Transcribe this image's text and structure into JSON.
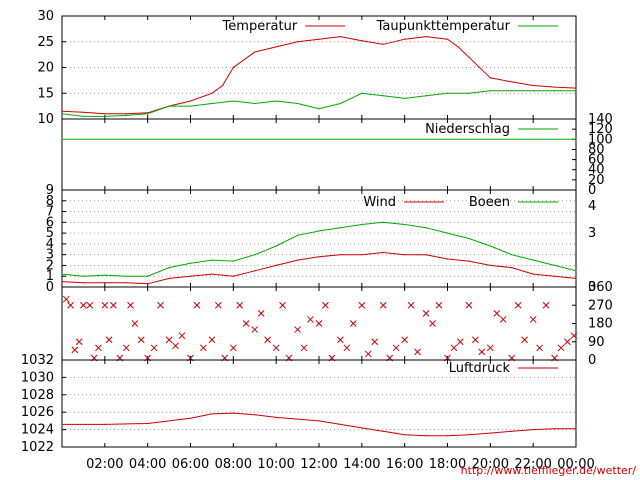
{
  "colors": {
    "red": "#cc0000",
    "green": "#00aa00",
    "grid": "#999999",
    "axis": "#000000"
  },
  "x_axis": {
    "range": [
      "00:00",
      "24:00"
    ],
    "ticks": [
      "02:00",
      "04:00",
      "06:00",
      "08:00",
      "10:00",
      "12:00",
      "14:00",
      "16:00",
      "18:00",
      "20:00",
      "22:00",
      "00:00"
    ],
    "tick_hours": [
      2,
      4,
      6,
      8,
      10,
      12,
      14,
      16,
      18,
      20,
      22,
      24
    ]
  },
  "footer": {
    "url": "http://www.tiefflieger.de/wetter/"
  },
  "chart_data": [
    {
      "type": "line",
      "grid": true,
      "ylim": [
        10,
        30
      ],
      "yticks": [
        "10",
        "15",
        "20",
        "25",
        "30"
      ],
      "ytick_values": [
        10,
        15,
        20,
        25,
        30
      ],
      "legend_position": "top-right",
      "x_unit": "hours",
      "series": [
        {
          "name": "Temperatur",
          "color": "#cc0000",
          "x": [
            0,
            1,
            2,
            3,
            4,
            5,
            6,
            7,
            7.5,
            8,
            9,
            10,
            11,
            12,
            13,
            14,
            15,
            16,
            17,
            18,
            18.5,
            19,
            20,
            21,
            22,
            23,
            24
          ],
          "y": [
            11.5,
            11.3,
            11.0,
            11.0,
            11.2,
            12.5,
            13.5,
            15.0,
            16.5,
            20.0,
            23.0,
            24.0,
            25.0,
            25.5,
            26.0,
            25.2,
            24.5,
            25.5,
            26.0,
            25.5,
            24.0,
            22.0,
            18.0,
            17.2,
            16.5,
            16.2,
            16.0
          ]
        },
        {
          "name": "Taupunkttemperatur",
          "color": "#00aa00",
          "x": [
            0,
            1,
            2,
            3,
            4,
            5,
            6,
            7,
            8,
            9,
            10,
            11,
            12,
            13,
            14,
            15,
            16,
            17,
            18,
            19,
            20,
            21,
            22,
            23,
            24
          ],
          "y": [
            11.0,
            10.5,
            10.5,
            10.7,
            11.0,
            12.5,
            12.5,
            13.0,
            13.5,
            13.0,
            13.5,
            13.0,
            12.0,
            13.0,
            15.0,
            14.5,
            14.0,
            14.5,
            15.0,
            15.0,
            15.5,
            15.5,
            15.5,
            15.5,
            15.5
          ]
        }
      ]
    },
    {
      "type": "line",
      "grid": false,
      "ylim": [
        0,
        140
      ],
      "yticks": [
        "0",
        "20",
        "40",
        "60",
        "80",
        "100",
        "120",
        "140"
      ],
      "ytick_values": [
        0,
        20,
        40,
        60,
        80,
        100,
        120,
        140
      ],
      "legend_position": "top-right",
      "x_unit": "hours",
      "series": [
        {
          "name": "Niederschlag",
          "color": "#00aa00",
          "x": [
            0,
            24
          ],
          "y": [
            100,
            100
          ]
        }
      ]
    },
    {
      "type": "line",
      "grid": true,
      "ylim": [
        0,
        9
      ],
      "yticks": [
        "0",
        "1",
        "2",
        "3",
        "4",
        "5",
        "6",
        "7",
        "8",
        "9"
      ],
      "ytick_values": [
        0,
        1,
        2,
        3,
        4,
        5,
        6,
        7,
        8,
        9
      ],
      "right_ticks": [
        "0",
        "3",
        "4"
      ],
      "right_tick_values": [
        0,
        5,
        7.5
      ],
      "legend_position": "top-right",
      "x_unit": "hours",
      "series": [
        {
          "name": "Wind",
          "color": "#cc0000",
          "x": [
            0,
            1,
            2,
            3,
            4,
            5,
            6,
            7,
            8,
            9,
            10,
            11,
            12,
            13,
            14,
            15,
            16,
            17,
            18,
            19,
            20,
            21,
            22,
            23,
            24
          ],
          "y": [
            0.5,
            0.4,
            0.4,
            0.4,
            0.3,
            0.8,
            1.0,
            1.2,
            1.0,
            1.5,
            2.0,
            2.5,
            2.8,
            3.0,
            3.0,
            3.2,
            3.0,
            3.0,
            2.6,
            2.4,
            2.0,
            1.8,
            1.2,
            1.0,
            0.8
          ]
        },
        {
          "name": "Boeen",
          "color": "#00aa00",
          "x": [
            0,
            1,
            2,
            3,
            4,
            5,
            6,
            7,
            8,
            9,
            10,
            11,
            12,
            13,
            14,
            15,
            16,
            17,
            18,
            19,
            20,
            21,
            22,
            23,
            24
          ],
          "y": [
            1.2,
            1.0,
            1.1,
            1.0,
            1.0,
            1.8,
            2.2,
            2.5,
            2.4,
            3.0,
            3.8,
            4.8,
            5.2,
            5.5,
            5.8,
            6.0,
            5.8,
            5.5,
            5.0,
            4.5,
            3.8,
            3.0,
            2.5,
            2.0,
            1.5
          ]
        }
      ]
    },
    {
      "type": "scatter",
      "grid": false,
      "ylim": [
        0,
        360
      ],
      "yticks": [
        "0",
        "90",
        "180",
        "270",
        "360"
      ],
      "ytick_values": [
        0,
        90,
        180,
        270,
        360
      ],
      "x_unit": "hours",
      "series": [
        {
          "name": "",
          "color": "#cc0000",
          "marker": "x",
          "x": [
            0.2,
            0.4,
            0.6,
            0.8,
            1.0,
            1.3,
            1.5,
            1.7,
            2.0,
            2.2,
            2.4,
            2.7,
            3.0,
            3.2,
            3.4,
            3.7,
            4.0,
            4.3,
            4.6,
            5.0,
            5.3,
            5.6,
            6.0,
            6.3,
            6.6,
            7.0,
            7.3,
            7.6,
            8.0,
            8.3,
            8.6,
            9.0,
            9.3,
            9.6,
            10.0,
            10.3,
            10.6,
            11.0,
            11.3,
            11.6,
            12.0,
            12.3,
            12.6,
            13.0,
            13.3,
            13.6,
            14.0,
            14.3,
            14.6,
            15.0,
            15.3,
            15.6,
            16.0,
            16.3,
            16.6,
            17.0,
            17.3,
            17.6,
            18.0,
            18.3,
            18.6,
            19.0,
            19.3,
            19.6,
            20.0,
            20.3,
            20.6,
            21.0,
            21.3,
            21.6,
            22.0,
            22.3,
            22.6,
            23.0,
            23.3,
            23.6,
            23.9
          ],
          "y": [
            300,
            270,
            50,
            90,
            270,
            270,
            10,
            60,
            270,
            100,
            270,
            10,
            60,
            270,
            180,
            100,
            10,
            60,
            270,
            100,
            70,
            120,
            10,
            270,
            60,
            100,
            270,
            10,
            60,
            270,
            180,
            150,
            230,
            100,
            60,
            270,
            10,
            150,
            60,
            200,
            180,
            270,
            10,
            100,
            60,
            180,
            270,
            30,
            90,
            270,
            10,
            60,
            100,
            270,
            40,
            230,
            180,
            270,
            10,
            60,
            90,
            270,
            100,
            40,
            60,
            230,
            200,
            10,
            270,
            100,
            200,
            60,
            270,
            10,
            60,
            90,
            120
          ]
        }
      ]
    },
    {
      "type": "line",
      "grid": true,
      "ylim": [
        1022,
        1032
      ],
      "yticks": [
        "1022",
        "1024",
        "1026",
        "1028",
        "1030",
        "1032"
      ],
      "ytick_values": [
        1022,
        1024,
        1026,
        1028,
        1030,
        1032
      ],
      "legend_position": "top-right",
      "x_unit": "hours",
      "series": [
        {
          "name": "Luftdruck",
          "color": "#cc0000",
          "x": [
            0,
            2,
            4,
            6,
            7,
            8,
            9,
            10,
            12,
            13,
            14,
            15,
            16,
            17,
            18,
            19,
            20,
            21,
            22,
            23,
            24
          ],
          "y": [
            1024.6,
            1024.6,
            1024.7,
            1025.3,
            1025.8,
            1025.9,
            1025.7,
            1025.4,
            1025.0,
            1024.6,
            1024.2,
            1023.8,
            1023.4,
            1023.3,
            1023.3,
            1023.4,
            1023.6,
            1023.8,
            1024.0,
            1024.1,
            1024.1
          ]
        }
      ]
    }
  ]
}
